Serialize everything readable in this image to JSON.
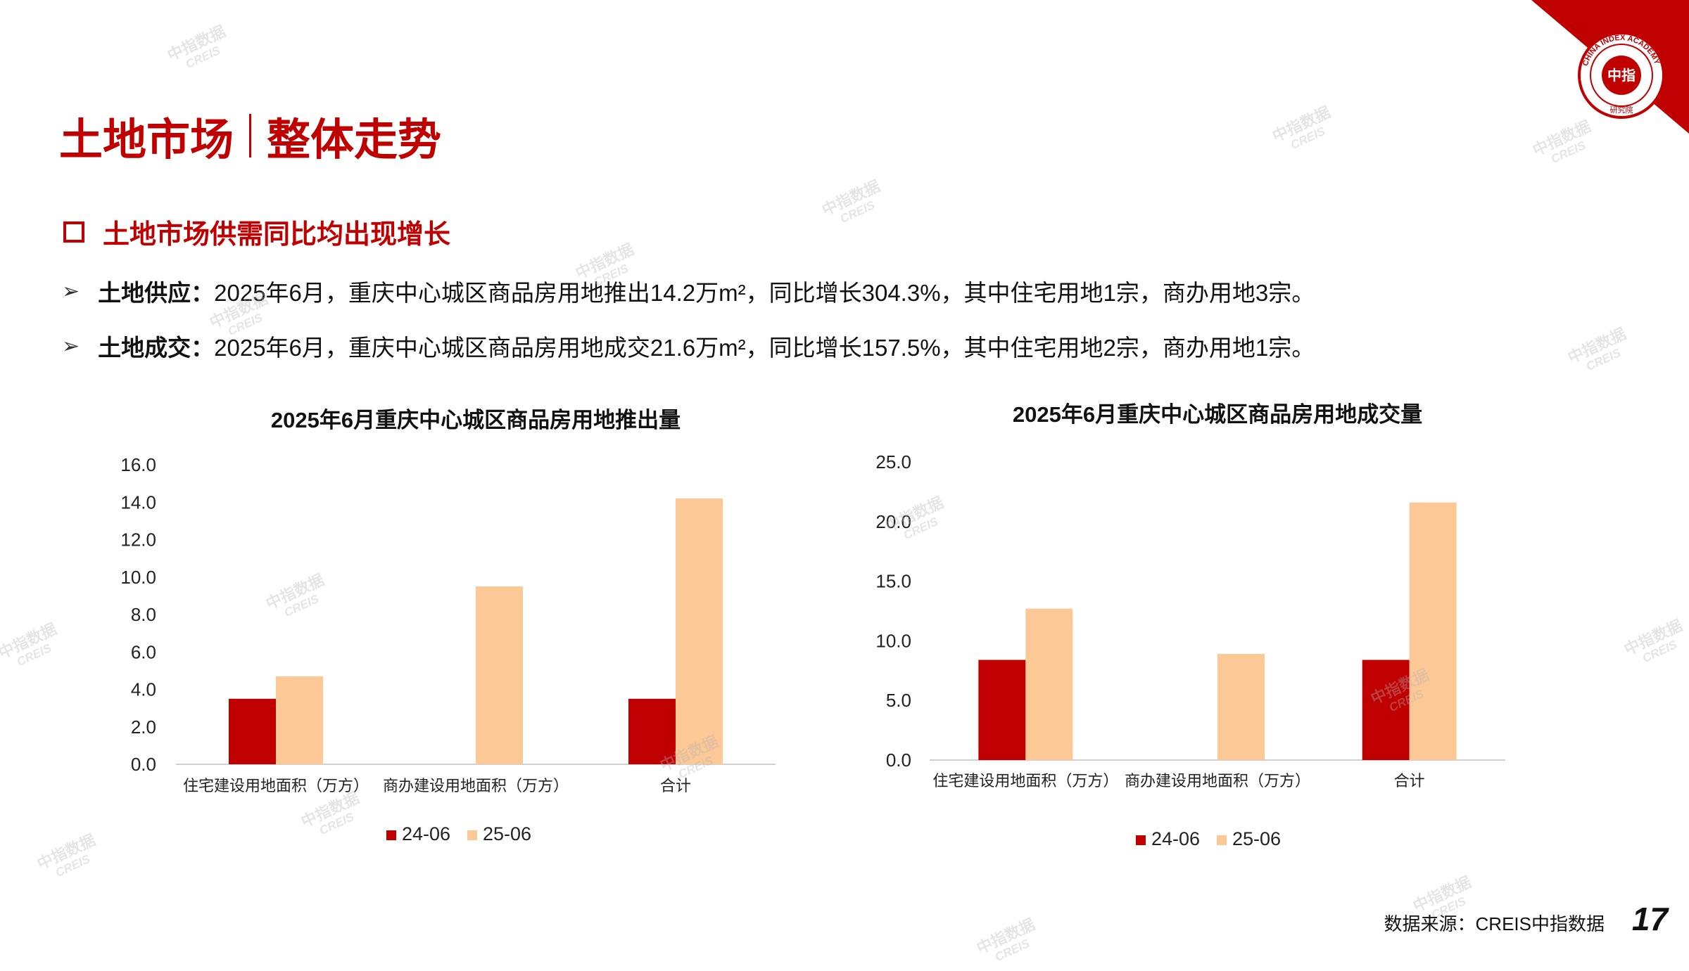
{
  "header": {
    "title_left": "土地市场",
    "title_right": "整体走势",
    "logo_text": "CHINA INDEX ACADEMY",
    "logo_center": "中指",
    "logo_bottom": "研究院"
  },
  "subheading": "土地市场供需同比均出现增长",
  "bullets": [
    {
      "label": "土地供应：",
      "text": "2025年6月，重庆中心城区商品房用地推出14.2万m²，同比增长304.3%，其中住宅用地1宗，商办用地3宗。"
    },
    {
      "label": "土地成交：",
      "text": "2025年6月，重庆中心城区商品房用地成交21.6万m²，同比增长157.5%，其中住宅用地2宗，商办用地1宗。"
    }
  ],
  "watermark": {
    "cn": "中指数据",
    "en": "CREIS"
  },
  "footer": {
    "source": "数据来源：CREIS中指数据",
    "page": "17"
  },
  "colors": {
    "accent": "#c00000",
    "series_24": "#c00000",
    "series_25": "#fcc895"
  },
  "chart_data": [
    {
      "type": "bar",
      "title": "2025年6月重庆中心城区商品房用地推出量",
      "categories": [
        "住宅建设用地面积（万方）",
        "商办建设用地面积（万方）",
        "合计"
      ],
      "series": [
        {
          "name": "24-06",
          "values": [
            3.5,
            0,
            3.5
          ]
        },
        {
          "name": "25-06",
          "values": [
            4.7,
            9.5,
            14.2
          ]
        }
      ],
      "ylim": [
        0,
        16
      ],
      "yticks": [
        "0.0",
        "2.0",
        "4.0",
        "6.0",
        "8.0",
        "10.0",
        "12.0",
        "14.0",
        "16.0"
      ],
      "grid": false,
      "legend": "bottom"
    },
    {
      "type": "bar",
      "title": "2025年6月重庆中心城区商品房用地成交量",
      "categories": [
        "住宅建设用地面积（万方）",
        "商办建设用地面积（万方）",
        "合计"
      ],
      "series": [
        {
          "name": "24-06",
          "values": [
            8.4,
            0,
            8.4
          ]
        },
        {
          "name": "25-06",
          "values": [
            12.7,
            8.9,
            21.6
          ]
        }
      ],
      "ylim": [
        0,
        25
      ],
      "yticks": [
        "0.0",
        "5.0",
        "10.0",
        "15.0",
        "20.0",
        "25.0"
      ],
      "grid": false,
      "legend": "bottom"
    }
  ]
}
